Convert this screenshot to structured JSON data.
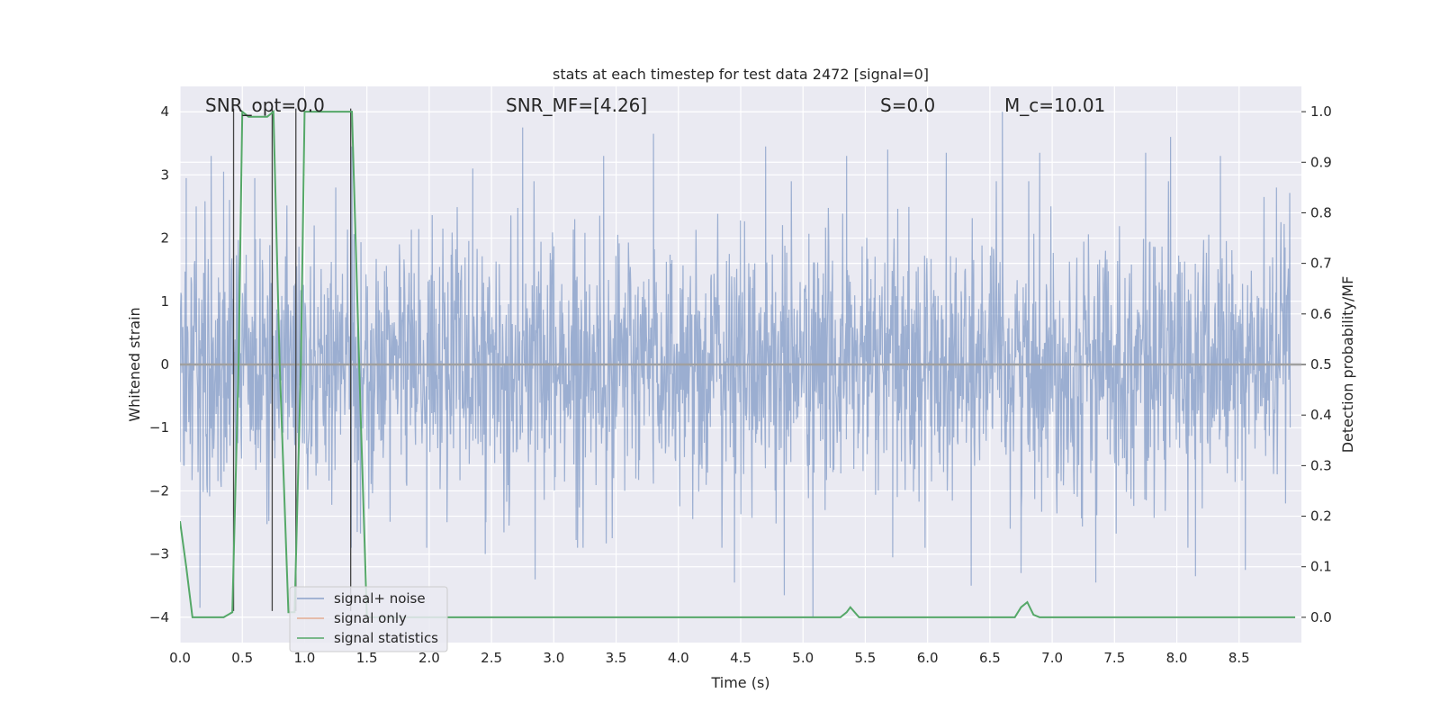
{
  "chart_data": {
    "type": "line",
    "title": "stats at each timestep for test data 2472 [signal=0]",
    "xlabel": "Time (s)",
    "ylabel": "Whitened strain",
    "y2label": "Detection probability/MF",
    "xlim": [
      0.0,
      9.0
    ],
    "ylim": [
      -4.4,
      4.4
    ],
    "y2lim": [
      -0.05,
      1.05
    ],
    "xticks": [
      "0.0",
      "0.5",
      "1.0",
      "1.5",
      "2.0",
      "2.5",
      "3.0",
      "3.5",
      "4.0",
      "4.5",
      "5.0",
      "5.5",
      "6.0",
      "6.5",
      "7.0",
      "7.5",
      "8.0",
      "8.5"
    ],
    "yticks": [
      "−4",
      "−3",
      "−2",
      "−1",
      "0",
      "1",
      "2",
      "3",
      "4"
    ],
    "y2ticks": [
      "0.0",
      "0.1",
      "0.2",
      "0.3",
      "0.4",
      "0.5",
      "0.6",
      "0.7",
      "0.8",
      "0.9",
      "1.0"
    ],
    "grid": true,
    "legend_position": "lower-left",
    "annotations": [
      {
        "text": "SNR_opt=0.0",
        "x_frac": 0.02
      },
      {
        "text": "SNR_MF=[4.26]",
        "x_frac": 0.29
      },
      {
        "text": "S=0.0",
        "x_frac": 0.62
      },
      {
        "text": "M_c=10.01",
        "x_frac": 0.73
      }
    ],
    "series": [
      {
        "name": "signal+ noise",
        "axis": "left",
        "color": "#4c72b0",
        "style": "noise",
        "amplitude_std": 1.0,
        "peaks": [
          {
            "x": 0.05,
            "y": 2.95
          },
          {
            "x": 0.13,
            "y": 2.5
          },
          {
            "x": 0.16,
            "y": -3.85
          },
          {
            "x": 0.25,
            "y": 3.3
          },
          {
            "x": 0.35,
            "y": 3.05
          },
          {
            "x": 0.6,
            "y": 2.95
          },
          {
            "x": 1.25,
            "y": 2.8
          },
          {
            "x": 1.38,
            "y": 3.45
          },
          {
            "x": 1.98,
            "y": -2.9
          },
          {
            "x": 2.35,
            "y": 3.1
          },
          {
            "x": 2.45,
            "y": -3.0
          },
          {
            "x": 2.75,
            "y": 3.75
          },
          {
            "x": 2.85,
            "y": -3.4
          },
          {
            "x": 3.4,
            "y": 3.3
          },
          {
            "x": 3.8,
            "y": 3.65
          },
          {
            "x": 4.45,
            "y": -3.45
          },
          {
            "x": 4.7,
            "y": 3.45
          },
          {
            "x": 4.85,
            "y": -3.65
          },
          {
            "x": 5.08,
            "y": -4.0
          },
          {
            "x": 5.35,
            "y": 3.3
          },
          {
            "x": 5.68,
            "y": 3.4
          },
          {
            "x": 5.72,
            "y": -3.05
          },
          {
            "x": 6.15,
            "y": 3.35
          },
          {
            "x": 6.35,
            "y": -3.5
          },
          {
            "x": 6.6,
            "y": 4.0
          },
          {
            "x": 6.75,
            "y": -3.3
          },
          {
            "x": 6.9,
            "y": 3.35
          },
          {
            "x": 7.35,
            "y": -3.45
          },
          {
            "x": 7.75,
            "y": 3.35
          },
          {
            "x": 7.95,
            "y": 3.6
          },
          {
            "x": 8.15,
            "y": -3.35
          },
          {
            "x": 8.35,
            "y": 3.3
          },
          {
            "x": 8.55,
            "y": -3.25
          },
          {
            "x": 8.7,
            "y": 2.65
          },
          {
            "x": 8.8,
            "y": 2.8
          }
        ]
      },
      {
        "name": "signal only",
        "axis": "left",
        "color": "#dd8452",
        "style": "line",
        "x": [
          0.0,
          9.0
        ],
        "y": [
          0.0,
          0.0
        ]
      },
      {
        "name": "signal statistics",
        "axis": "right",
        "color": "#55a868",
        "style": "line",
        "x": [
          0.0,
          0.05,
          0.1,
          0.35,
          0.42,
          0.47,
          0.5,
          0.55,
          0.7,
          0.75,
          0.8,
          0.87,
          0.92,
          0.97,
          1.0,
          1.35,
          1.38,
          1.45,
          1.5,
          5.25,
          5.3,
          5.35,
          5.38,
          5.45,
          5.5,
          6.65,
          6.7,
          6.75,
          6.8,
          6.85,
          6.9,
          8.95
        ],
        "y": [
          0.19,
          0.1,
          0.0,
          0.0,
          0.01,
          0.5,
          1.0,
          0.99,
          0.99,
          1.0,
          0.5,
          0.01,
          0.01,
          0.5,
          1.0,
          1.0,
          1.0,
          0.4,
          0.0,
          0.0,
          0.0,
          0.01,
          0.02,
          0.0,
          0.0,
          0.0,
          0.0,
          0.02,
          0.03,
          0.005,
          0.0,
          0.0
        ]
      }
    ],
    "vertical_lines": {
      "color": "#444444",
      "x": [
        0.43,
        0.74,
        0.93,
        1.37
      ]
    }
  }
}
